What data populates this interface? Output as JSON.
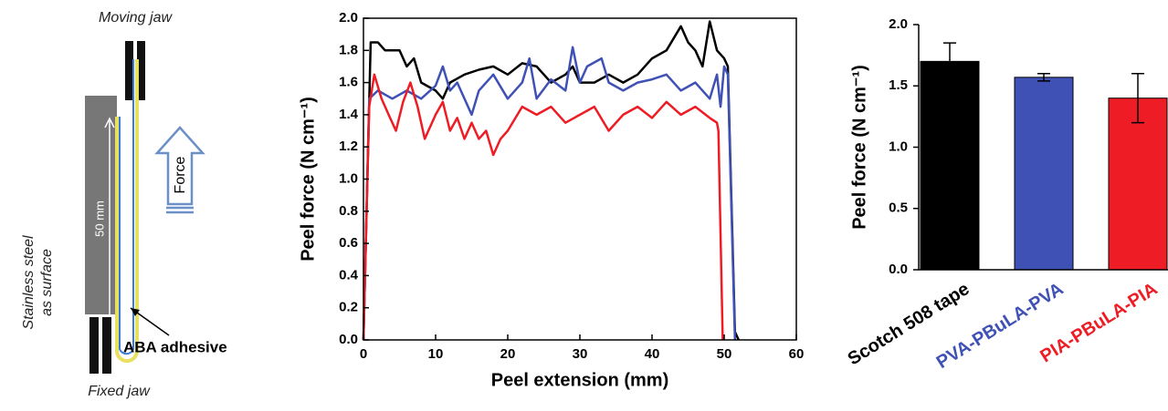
{
  "diagram": {
    "labels": {
      "moving_jaw": "Moving jaw",
      "surface_line1": "Stainless steel",
      "surface_line2": "as surface",
      "length": "50 mm",
      "force": "Force",
      "adhesive": "ABA adhesive",
      "fixed_jaw": "Fixed jaw"
    }
  },
  "chart_data": [
    {
      "type": "line",
      "xlabel": "Peel extension (mm)",
      "ylabel": "Peel force (N cm⁻¹)",
      "xlim": [
        0,
        60
      ],
      "xticks": [
        0,
        10,
        20,
        30,
        40,
        50,
        60
      ],
      "ylim": [
        0,
        2
      ],
      "yticks": [
        {
          "value": 0,
          "label": "0.0"
        },
        0.2,
        0.4,
        0.6,
        0.8,
        {
          "value": 1,
          "label": "1.0"
        },
        1.2,
        1.4,
        1.6,
        1.8,
        {
          "value": 2,
          "label": "2.0"
        }
      ],
      "series": [
        {
          "color": "#000000",
          "x": [
            0,
            1,
            2,
            3,
            5,
            6,
            7,
            8,
            10,
            11,
            12,
            14,
            16,
            18,
            20,
            22,
            24,
            26,
            28,
            29,
            30,
            32,
            34,
            36,
            38,
            40,
            42,
            44,
            45,
            46,
            47,
            48,
            49,
            50,
            50.5,
            51.5,
            52
          ],
          "values": [
            0,
            1.85,
            1.85,
            1.8,
            1.8,
            1.7,
            1.75,
            1.6,
            1.55,
            1.5,
            1.6,
            1.65,
            1.68,
            1.7,
            1.65,
            1.72,
            1.7,
            1.6,
            1.65,
            1.7,
            1.6,
            1.6,
            1.65,
            1.6,
            1.65,
            1.75,
            1.8,
            1.95,
            1.85,
            1.8,
            1.7,
            1.98,
            1.8,
            1.75,
            1.7,
            0.05,
            0
          ]
        },
        {
          "color": "#3f51b5",
          "x": [
            0,
            0.8,
            2,
            4,
            6,
            8,
            10,
            11,
            12,
            13,
            15,
            16,
            18,
            20,
            22,
            23,
            24,
            26,
            28,
            29,
            30,
            31,
            33,
            34,
            36,
            38,
            40,
            42,
            44,
            46,
            48,
            49,
            49.5,
            50,
            50.5,
            51.5
          ],
          "values": [
            0,
            1.5,
            1.55,
            1.5,
            1.55,
            1.5,
            1.58,
            1.7,
            1.55,
            1.6,
            1.4,
            1.55,
            1.65,
            1.5,
            1.6,
            1.75,
            1.5,
            1.62,
            1.55,
            1.82,
            1.6,
            1.7,
            1.75,
            1.6,
            1.55,
            1.6,
            1.62,
            1.65,
            1.55,
            1.6,
            1.5,
            1.65,
            1.45,
            1.7,
            1.65,
            0
          ]
        },
        {
          "color": "#ee1c24",
          "x": [
            0,
            0.8,
            1.5,
            2.5,
            3.5,
            4.5,
            5.5,
            6.5,
            7.5,
            8.5,
            10,
            11,
            12,
            13,
            14,
            15,
            16,
            17,
            18,
            19,
            20,
            22,
            24,
            26,
            28,
            30,
            32,
            34,
            36,
            38,
            40,
            42,
            44,
            46,
            48,
            49,
            49.2,
            49.8
          ],
          "values": [
            0,
            1.45,
            1.65,
            1.5,
            1.4,
            1.3,
            1.48,
            1.6,
            1.45,
            1.25,
            1.4,
            1.48,
            1.3,
            1.38,
            1.25,
            1.35,
            1.25,
            1.3,
            1.15,
            1.25,
            1.3,
            1.45,
            1.4,
            1.45,
            1.35,
            1.4,
            1.45,
            1.3,
            1.4,
            1.45,
            1.38,
            1.48,
            1.4,
            1.45,
            1.38,
            1.35,
            1.3,
            0
          ]
        }
      ]
    },
    {
      "type": "bar",
      "ylabel": "Peel force (N cm⁻¹)",
      "categories": [
        "Scotch 508 tape",
        "PVA-PBuLA-PVA",
        "PIA-PBuLA-PIA"
      ],
      "values": [
        1.7,
        1.57,
        1.4
      ],
      "errors": [
        0.15,
        0.03,
        0.2
      ],
      "colors": [
        "#000000",
        "#3f51b5",
        "#ee1c24"
      ],
      "ylim": [
        0,
        2
      ],
      "yticks": [
        {
          "value": 0,
          "label": "0.0"
        },
        0.5,
        {
          "value": 1,
          "label": "1.0"
        },
        1.5,
        {
          "value": 2,
          "label": "2.0"
        }
      ]
    }
  ]
}
